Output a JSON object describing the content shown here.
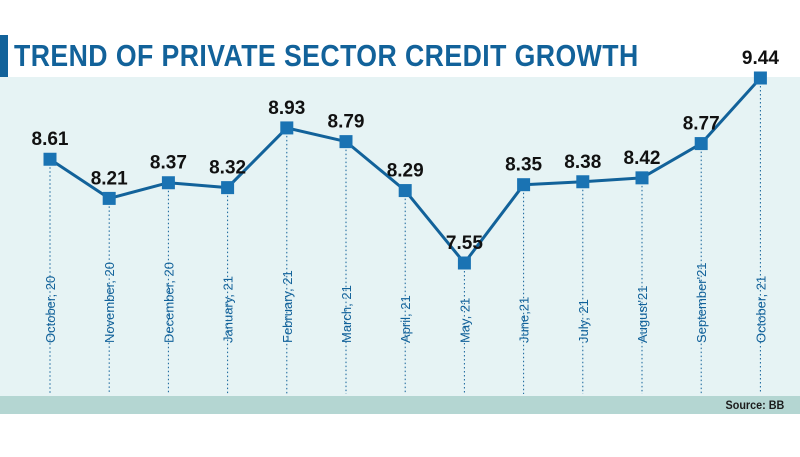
{
  "header": {
    "title": "TREND OF PRIVATE SECTOR CREDIT GROWTH"
  },
  "footer": {
    "source": "Source: BB"
  },
  "colors": {
    "accent": "#12629a",
    "panel": "#e6f3f4",
    "band": "#b4d6d2",
    "marker": "#1a73b3"
  },
  "chart_data": {
    "type": "line",
    "title": "TREND OF PRIVATE SECTOR CREDIT GROWTH",
    "categories": [
      "October, 20",
      "November, 20",
      "December, 20",
      "January, 21",
      "February, 21",
      "March, 21",
      "April, 21",
      "May, 21",
      "June,21",
      "July, 21",
      "August'21",
      "September'21",
      "October, 21"
    ],
    "values": [
      8.61,
      8.21,
      8.37,
      8.32,
      8.93,
      8.79,
      8.29,
      7.55,
      8.35,
      8.38,
      8.42,
      8.77,
      9.44
    ],
    "data_labels": [
      "8.61",
      "8.21",
      "8.37",
      "8.32",
      "8.93",
      "8.79",
      "8.29",
      "7.55",
      "8.35",
      "8.38",
      "8.42",
      "8.77",
      "9.44"
    ],
    "ylim": [
      7.4,
      9.6
    ],
    "grid": false,
    "legend": "none",
    "source": "Source: BB"
  }
}
